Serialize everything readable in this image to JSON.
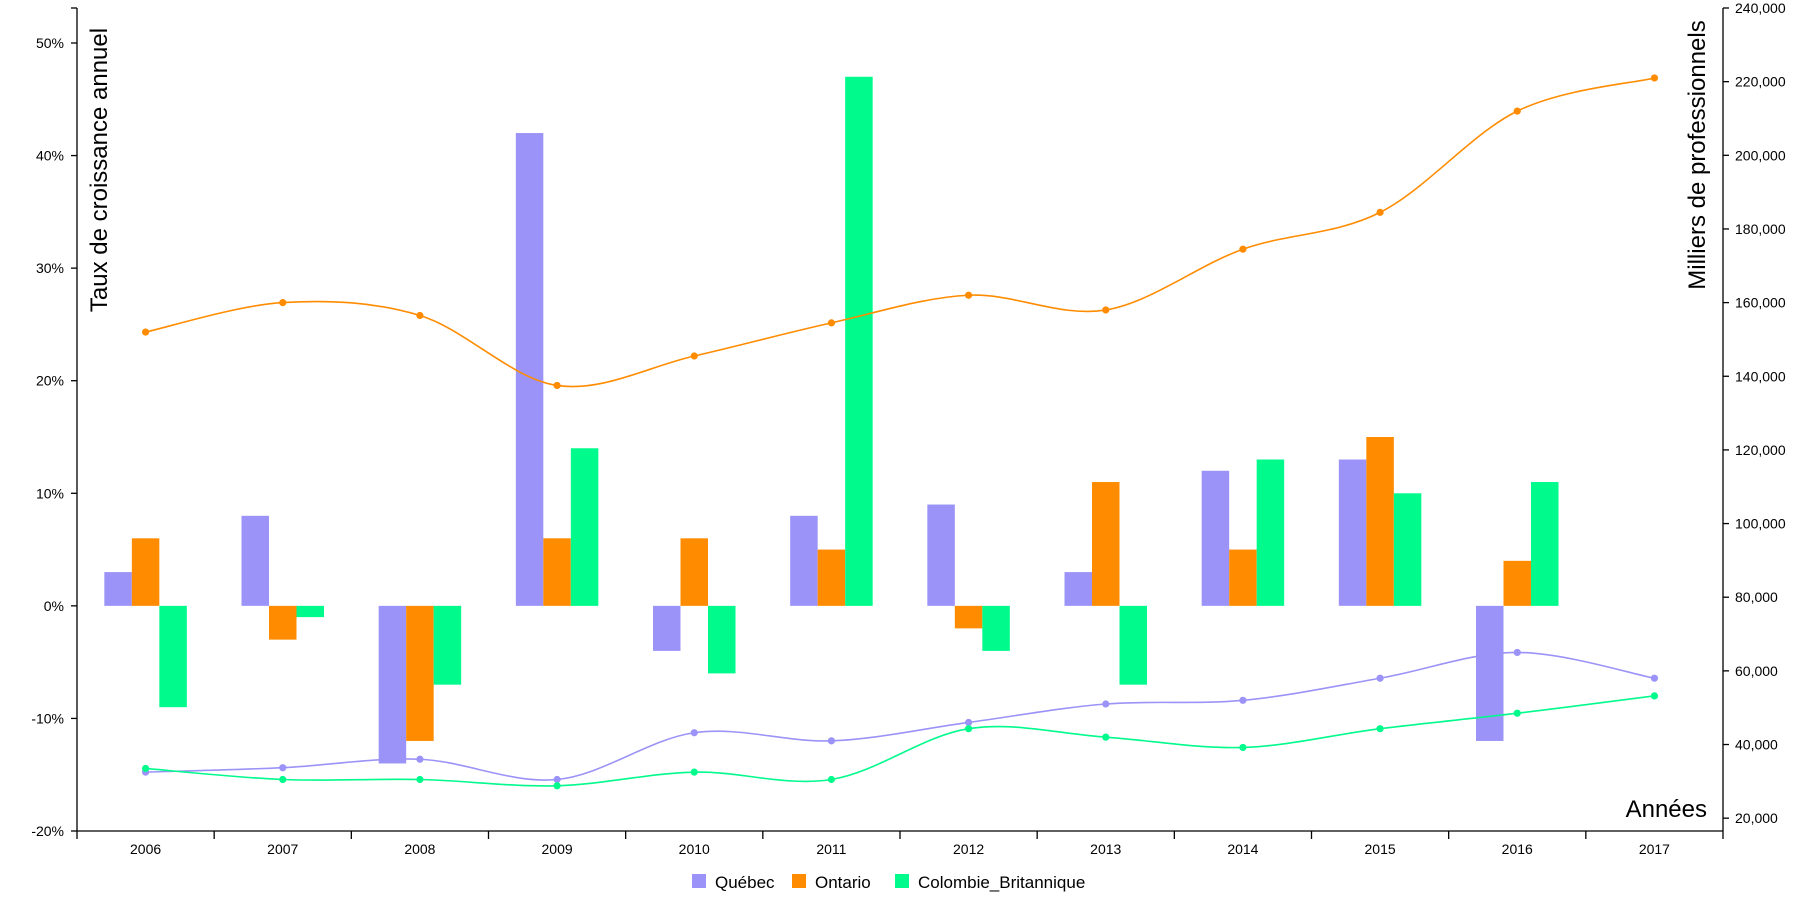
{
  "chart_data": {
    "type": "bar+line",
    "categories": [
      "2006",
      "2007",
      "2008",
      "2009",
      "2010",
      "2011",
      "2012",
      "2013",
      "2014",
      "2015",
      "2016",
      "2017"
    ],
    "colors": {
      "Québec": "#9b93f7",
      "Ontario": "#ff8c00",
      "Colombie_Britannique": "#00fa8c"
    },
    "bar_series": [
      {
        "name": "Québec",
        "values": [
          3,
          8,
          -14,
          42,
          -4,
          8,
          9,
          3,
          12,
          13,
          -12,
          null
        ]
      },
      {
        "name": "Ontario",
        "values": [
          6,
          -3,
          -12,
          6,
          6,
          5,
          -2,
          11,
          5,
          15,
          4,
          null
        ]
      },
      {
        "name": "Colombie_Britannique",
        "values": [
          -9,
          -1,
          -7,
          14,
          -6,
          47,
          -4,
          -7,
          13,
          10,
          11,
          null
        ]
      }
    ],
    "line_series": [
      {
        "name": "Québec",
        "values": [
          32500,
          33700,
          36000,
          30500,
          43200,
          41000,
          46000,
          51000,
          52000,
          58000,
          65000,
          58000
        ]
      },
      {
        "name": "Ontario",
        "values": [
          152000,
          160000,
          156500,
          137500,
          145500,
          154500,
          162000,
          158000,
          174500,
          184500,
          212000,
          221000
        ]
      },
      {
        "name": "Colombie_Britannique",
        "values": [
          33500,
          30500,
          30500,
          28800,
          32500,
          30500,
          44300,
          42000,
          39200,
          44300,
          48500,
          53200
        ]
      }
    ],
    "y_left": {
      "label": "Taux de croissance annuel",
      "min": -20,
      "max": 50,
      "ticks": [
        "-20%",
        "-10%",
        "0%",
        "10%",
        "20%",
        "30%",
        "40%",
        "50%"
      ]
    },
    "y_right": {
      "label": "Milliers de professionnels",
      "min": 10000,
      "max": 240000,
      "ticks": [
        "20,000",
        "40,000",
        "60,000",
        "80,000",
        "100,000",
        "120,000",
        "140,000",
        "160,000",
        "180,000",
        "200,000",
        "220,000",
        "240,000"
      ]
    },
    "xlabel": "Années",
    "legend": [
      "Québec",
      "Ontario",
      "Colombie_Britannique"
    ]
  }
}
